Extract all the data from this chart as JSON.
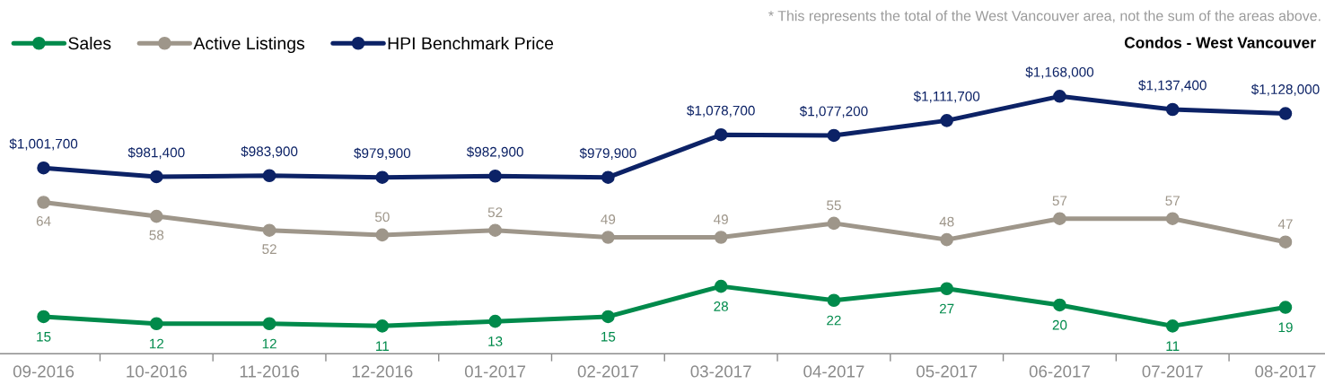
{
  "chart_data": [
    {
      "type": "line",
      "title": "Condos - West Vancouver",
      "annotations": [
        "* This represents the total of the West Vancouver area, not the sum of the areas above."
      ],
      "categories": [
        null,
        null,
        null,
        null,
        null,
        null,
        null,
        null,
        null,
        null,
        null,
        null
      ],
      "series": [
        {
          "name": "HPI Benchmark Price",
          "color": "#0c2266",
          "values": [
            1001700,
            981400,
            983900,
            979900,
            982900,
            979900,
            1078700,
            1077200,
            1111700,
            1168000,
            1137400,
            1128000
          ],
          "value_labels": [
            "$1,001,700",
            "$981,400",
            "$983,900",
            "$979,900",
            "$982,900",
            "$979,900",
            "$1,078,700",
            "$1,077,200",
            "$1,111,700",
            "$1,168,000",
            "$1,137,400",
            "$1,128,000"
          ]
        }
      ],
      "legend": "top left",
      "marker": "circle",
      "line_style": "solid",
      "tick_labels": false
    },
    {
      "type": "line",
      "categories": [
        "09-2016",
        "10-2016",
        "11-2016",
        "12-2016",
        "01-2017",
        "02-2017",
        "03-2017",
        "04-2017",
        "05-2017",
        "06-2017",
        "07-2017",
        "08-2017"
      ],
      "series": [
        {
          "name": "Sales",
          "color": "#008a4b",
          "values": [
            15,
            12,
            12,
            11,
            13,
            15,
            28,
            22,
            27,
            20,
            11,
            19
          ]
        },
        {
          "name": "Active Listings",
          "color": "#9e968a",
          "values": [
            64,
            58,
            52,
            50,
            52,
            49,
            49,
            55,
            48,
            57,
            57,
            47
          ]
        }
      ],
      "data_labels": true,
      "legend": "top left",
      "marker": "circle",
      "line_style": "solid",
      "tick_labels": "x"
    }
  ]
}
